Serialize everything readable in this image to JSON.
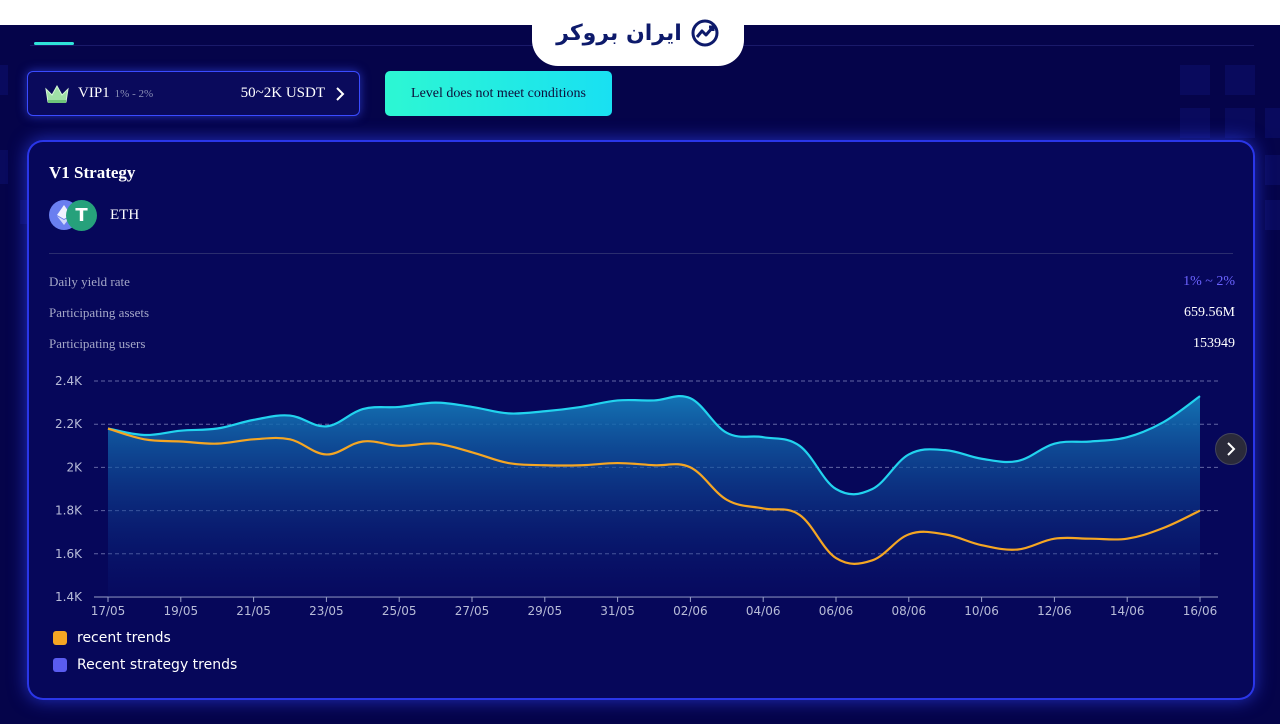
{
  "header": {
    "logo_text": "ایران بروکر"
  },
  "vip_card": {
    "level": "VIP1",
    "range": "1% - 2%",
    "amount": "50~2K USDT"
  },
  "level_button": {
    "label": "Level does not meet conditions"
  },
  "strategy": {
    "title": "V1 Strategy",
    "pair": "ETH",
    "stats": [
      {
        "label": "Daily yield rate",
        "value": "1% ~ 2%"
      },
      {
        "label": "Participating assets",
        "value": "659.56M"
      },
      {
        "label": "Participating users",
        "value": "153949"
      }
    ]
  },
  "colors": {
    "background": "#05044a",
    "card_border": "#2a36e8",
    "accent_rate": "#6b63ff",
    "strategy_line": "#22d3ee",
    "recent_line": "#f5a623",
    "legend_strategy": "#5a5cf0",
    "button_gradient": [
      "#2df7d3",
      "#19e0f2"
    ]
  },
  "icons": [
    "crown-icon",
    "chevron-right-icon",
    "eth-icon",
    "usdt-icon",
    "next-arrow-icon",
    "logo-growth-icon"
  ],
  "chart_data": {
    "type": "line",
    "x": [
      "17/05",
      "18/05",
      "19/05",
      "20/05",
      "21/05",
      "22/05",
      "23/05",
      "24/05",
      "25/05",
      "26/05",
      "27/05",
      "28/05",
      "29/05",
      "30/05",
      "31/05",
      "01/06",
      "02/06",
      "03/06",
      "04/06",
      "05/06",
      "06/06",
      "07/06",
      "08/06",
      "09/06",
      "10/06",
      "11/06",
      "12/06",
      "13/06",
      "14/06",
      "15/06",
      "16/06"
    ],
    "x_tick_labels": [
      "17/05",
      "19/05",
      "21/05",
      "23/05",
      "25/05",
      "27/05",
      "29/05",
      "31/05",
      "02/06",
      "04/06",
      "06/06",
      "08/06",
      "10/06",
      "12/06",
      "14/06",
      "16/06"
    ],
    "y_tick_labels": [
      "1.4K",
      "1.6K",
      "1.8K",
      "2K",
      "2.2K",
      "2.4K"
    ],
    "ylim": [
      1400,
      2400
    ],
    "series": [
      {
        "name": "Recent strategy trends",
        "style": "line-with-area",
        "values": [
          2180,
          2150,
          2170,
          2180,
          2220,
          2240,
          2190,
          2270,
          2280,
          2300,
          2280,
          2250,
          2260,
          2280,
          2310,
          2310,
          2320,
          2160,
          2140,
          2100,
          1900,
          1900,
          2060,
          2080,
          2040,
          2030,
          2110,
          2120,
          2140,
          2210,
          2330
        ]
      },
      {
        "name": "recent trends",
        "style": "line",
        "values": [
          2180,
          2130,
          2120,
          2110,
          2130,
          2130,
          2060,
          2120,
          2100,
          2110,
          2070,
          2020,
          2010,
          2010,
          2020,
          2010,
          2000,
          1850,
          1810,
          1780,
          1580,
          1570,
          1690,
          1690,
          1640,
          1620,
          1670,
          1670,
          1670,
          1720,
          1800
        ]
      }
    ],
    "legend": [
      {
        "label": "recent trends",
        "color": "#f5a623"
      },
      {
        "label": "Recent strategy trends",
        "color": "#5a5cf0"
      }
    ],
    "legend_position": "bottom-left",
    "grid": "horizontal-dashed"
  }
}
